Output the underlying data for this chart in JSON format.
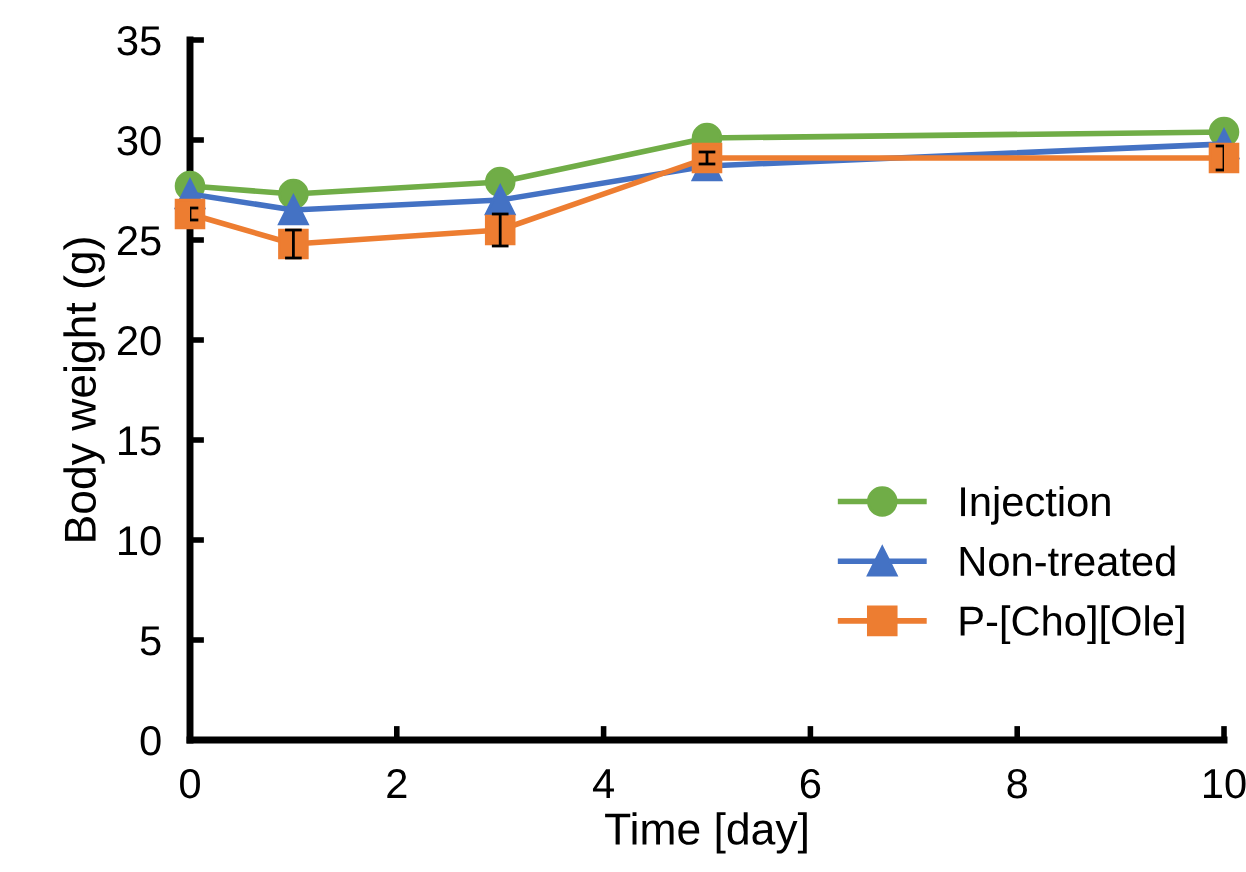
{
  "chart_data": {
    "type": "line",
    "xlabel": "Time [day]",
    "ylabel": "Body weight (g)",
    "x": [
      0,
      1,
      3,
      5,
      10
    ],
    "xlim": [
      0,
      10
    ],
    "xticks": [
      0,
      2,
      4,
      6,
      8,
      10
    ],
    "ylim": [
      0,
      35
    ],
    "yticks": [
      0,
      5,
      10,
      15,
      20,
      25,
      30,
      35
    ],
    "grid": false,
    "legend": "right",
    "series": [
      {
        "name": "Injection",
        "color": "#70ad47",
        "marker": "circle",
        "values": [
          27.7,
          27.3,
          27.9,
          30.1,
          30.4
        ]
      },
      {
        "name": "Non-treated",
        "color": "#4472c4",
        "marker": "triangle",
        "values": [
          27.3,
          26.5,
          27.0,
          28.7,
          29.8
        ]
      },
      {
        "name": "P-[Cho][Ole]",
        "color": "#ed7d31",
        "marker": "square",
        "values": [
          26.3,
          24.8,
          25.5,
          29.1,
          29.1
        ],
        "errors": [
          0.3,
          0.7,
          0.8,
          0.3,
          0.6
        ]
      }
    ]
  }
}
